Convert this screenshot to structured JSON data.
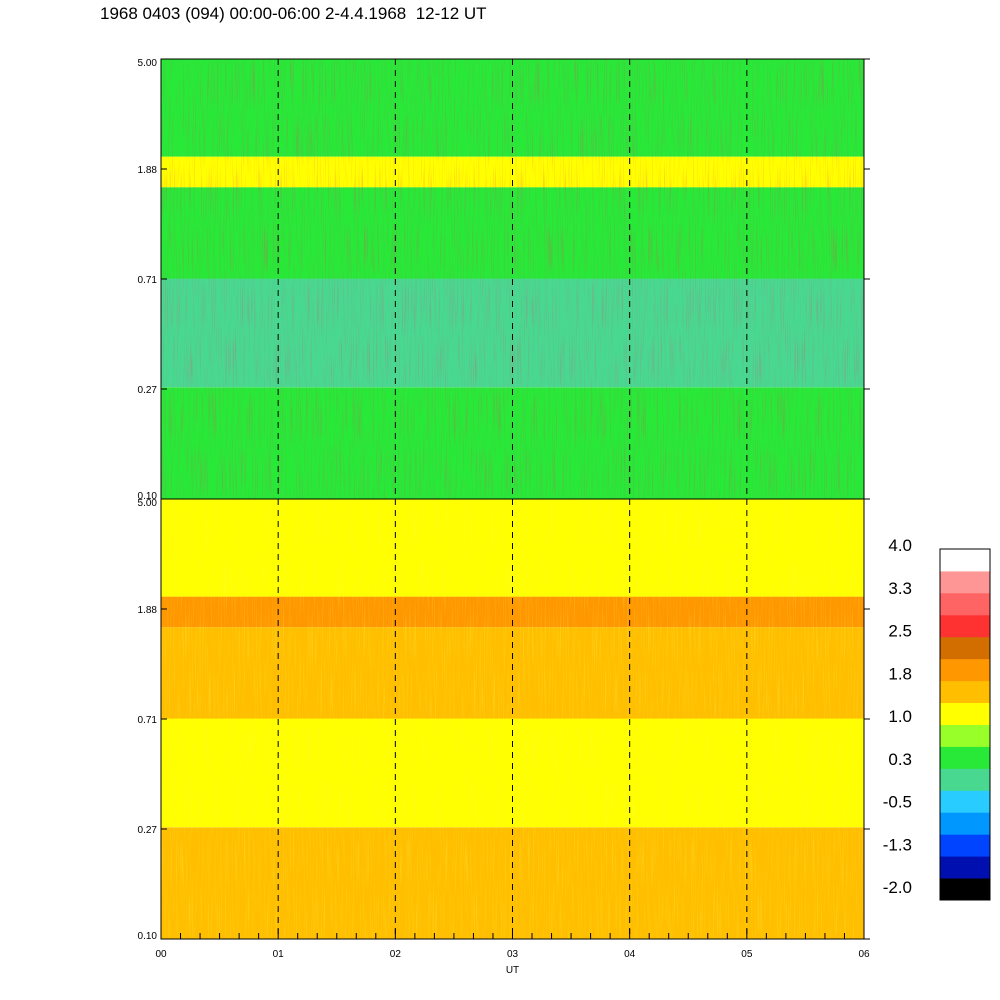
{
  "title": "1968 0403 (094) 00:00-06:00 2-4.4.1968  12-12 UT",
  "chart_data": {
    "type": "heatmap",
    "title": "1968 0403 (094) 00:00-06:00 2-4.4.1968  12-12 UT",
    "xlabel": "UT",
    "x_ticks": [
      "00",
      "01",
      "02",
      "03",
      "04",
      "05",
      "06"
    ],
    "xlim": [
      0,
      6
    ],
    "panels": [
      {
        "name": "upper panel",
        "y_ticks": [
          "5.00",
          "1.88",
          "0.71",
          "0.27",
          "0.10"
        ],
        "ylim": [
          0.1,
          5.0
        ],
        "y_scale": "log",
        "dominant_level_by_band": [
          {
            "band": "0.10-0.27",
            "level": 0.3
          },
          {
            "band": "0.27-0.71",
            "level": 0.1
          },
          {
            "band": "0.71-1.60",
            "level": 0.5
          },
          {
            "band": "1.60-2.10",
            "level": 1.0
          },
          {
            "band": "2.10-5.00",
            "level": 0.5
          }
        ]
      },
      {
        "name": "lower panel",
        "y_ticks": [
          "5.00",
          "1.88",
          "0.71",
          "0.27",
          "0.10"
        ],
        "ylim": [
          0.1,
          5.0
        ],
        "y_scale": "log",
        "dominant_level_by_band": [
          {
            "band": "0.10-0.27",
            "level": 1.4
          },
          {
            "band": "0.27-0.71",
            "level": 1.2
          },
          {
            "band": "0.71-1.60",
            "level": 1.5
          },
          {
            "band": "1.60-2.10",
            "level": 2.0
          },
          {
            "band": "2.10-5.00",
            "level": 1.2
          }
        ]
      }
    ],
    "colorbar": {
      "labels": [
        "4.0",
        "3.3",
        "2.5",
        "1.8",
        "1.0",
        "0.3",
        "-0.5",
        "-1.3",
        "-2.0"
      ],
      "range": [
        -2.0,
        4.0
      ],
      "colors": [
        "#000000",
        "#0010b0",
        "#0044ff",
        "#0098ff",
        "#28ccff",
        "#48d890",
        "#28e838",
        "#98ff28",
        "#ffff00",
        "#ffbf00",
        "#ff9800",
        "#d26e00",
        "#ff3232",
        "#ff6464",
        "#ff9696",
        "#ffffff"
      ]
    }
  }
}
